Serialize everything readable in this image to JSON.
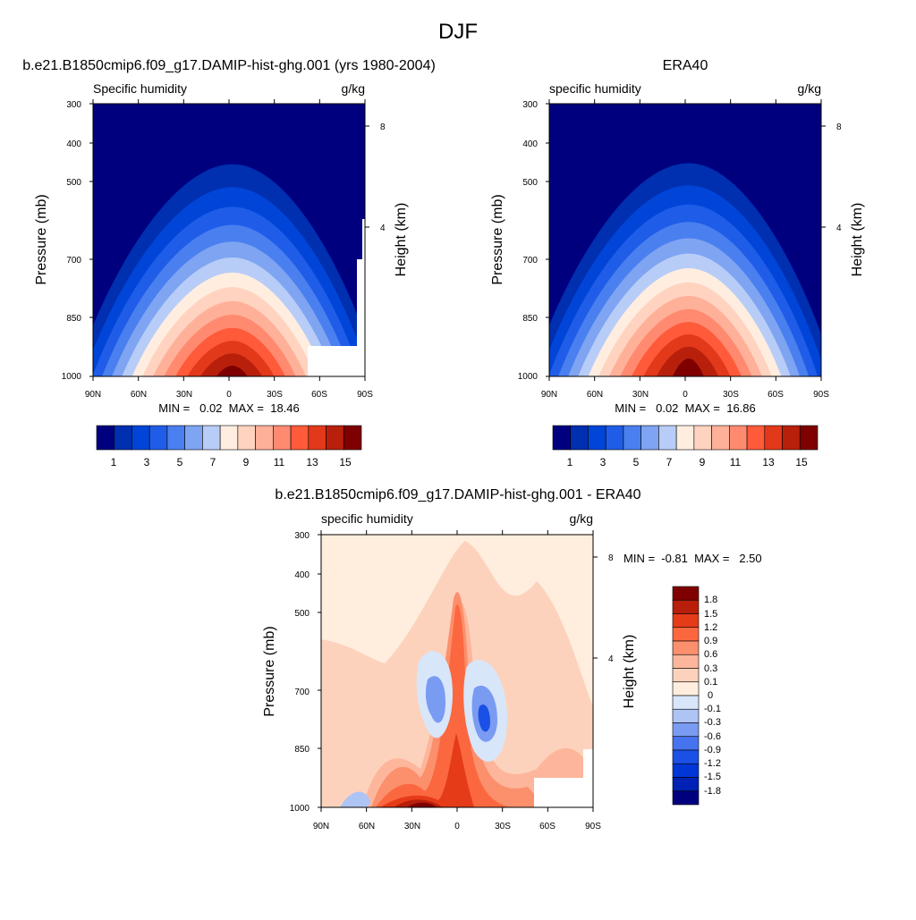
{
  "figure": {
    "title": "DJF"
  },
  "palettes": {
    "abs": [
      "#00007f",
      "#002faf",
      "#0045d8",
      "#1f5de8",
      "#4a7ff0",
      "#7ea4f2",
      "#b7cdf7",
      "#ffeee0",
      "#ffd3bf",
      "#ffb099",
      "#ff8a70",
      "#ff5a3a",
      "#e2391a",
      "#b8200c",
      "#7f0000"
    ],
    "diff": [
      "#00007f",
      "#0021b3",
      "#0036d6",
      "#1b50e6",
      "#4673ee",
      "#7a9bf2",
      "#adc4f5",
      "#d8e6fa",
      "#ffeedd",
      "#fdd2bc",
      "#fdb69b",
      "#fc8f6c",
      "#fb6840",
      "#e53b19",
      "#b81f0a",
      "#7f0000"
    ]
  },
  "chart_data": [
    {
      "type": "heatmap",
      "name": "model",
      "title": "b.e21.B1850cmip6.f09_g17.DAMIP-hist-ghg.001 (yrs 1980-2004)",
      "subtitle_left": "Specific humidity",
      "subtitle_right": "g/kg",
      "ylabel": "Pressure (mb)",
      "y2label": "Height (km)",
      "xticks": [
        "90N",
        "60N",
        "30N",
        "0",
        "30S",
        "60S",
        "90S"
      ],
      "yticks": [
        "300",
        "400",
        "500",
        "700",
        "850",
        "1000"
      ],
      "y2ticks": [
        "8",
        "4"
      ],
      "stats": "MIN =   0.02  MAX =  18.46",
      "colorbar_labels": [
        "1",
        "3",
        "5",
        "7",
        "9",
        "11",
        "13",
        "15"
      ],
      "peak": 18.46,
      "min": 0.02,
      "topo_mask": true
    },
    {
      "type": "heatmap",
      "name": "obs",
      "title": "ERA40",
      "subtitle_left": "specific humidity",
      "subtitle_right": "g/kg",
      "ylabel": "Pressure (mb)",
      "y2label": "Height (km)",
      "xticks": [
        "90N",
        "60N",
        "30N",
        "0",
        "30S",
        "60S",
        "90S"
      ],
      "yticks": [
        "300",
        "400",
        "500",
        "700",
        "850",
        "1000"
      ],
      "y2ticks": [
        "8",
        "4"
      ],
      "stats": "MIN =   0.02  MAX =  16.86",
      "colorbar_labels": [
        "1",
        "3",
        "5",
        "7",
        "9",
        "11",
        "13",
        "15"
      ],
      "peak": 16.86,
      "min": 0.02,
      "topo_mask": false
    },
    {
      "type": "heatmap",
      "name": "diff",
      "title": "b.e21.B1850cmip6.f09_g17.DAMIP-hist-ghg.001 - ERA40",
      "subtitle_left": "specific humidity",
      "subtitle_right": "g/kg",
      "ylabel": "Pressure (mb)",
      "y2label": "Height (km)",
      "xticks": [
        "90N",
        "60N",
        "30N",
        "0",
        "30S",
        "60S",
        "90S"
      ],
      "yticks": [
        "300",
        "400",
        "500",
        "700",
        "850",
        "1000"
      ],
      "y2ticks": [
        "8",
        "4"
      ],
      "stats": "MIN =  -0.81  MAX =   2.50",
      "colorbar_labels": [
        "1.8",
        "1.5",
        "1.2",
        "0.9",
        "0.6",
        "0.3",
        "0.1",
        "0",
        "-0.1",
        "-0.3",
        "-0.6",
        "-0.9",
        "-1.2",
        "-1.5",
        "-1.8"
      ],
      "min": -0.81,
      "max": 2.5,
      "topo_mask": true
    }
  ]
}
